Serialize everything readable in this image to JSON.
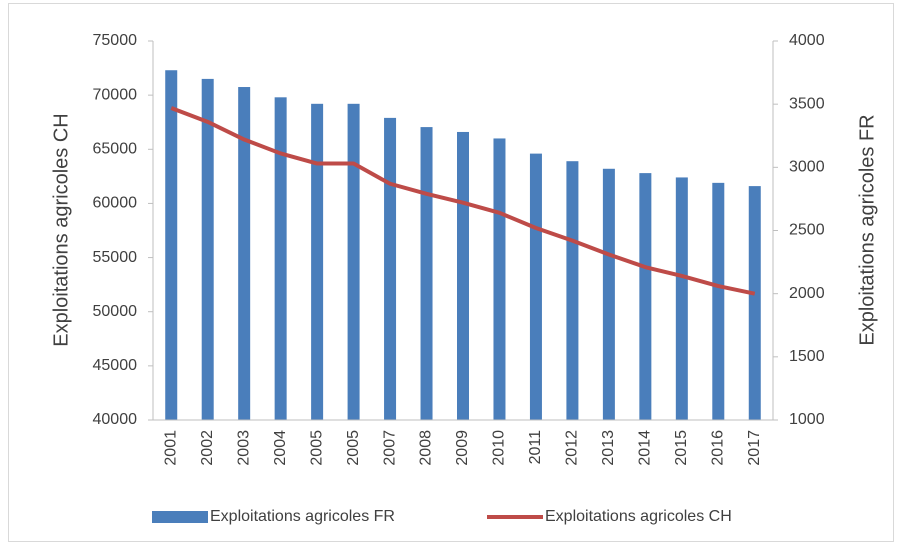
{
  "chart_data": {
    "type": "bar_line",
    "y_label": "Exploitations agricoles  CH",
    "y2_label": "Exploitations agricoles  FR",
    "categories": [
      "2001",
      "2002",
      "2003",
      "2004",
      "2005",
      "2005",
      "2007",
      "2008",
      "2009",
      "2010",
      "2011",
      "2012",
      "2013",
      "2014",
      "2015",
      "2016",
      "2017"
    ],
    "series": [
      {
        "name": "Exploitations agricoles  FR",
        "type": "bar",
        "color": "#4a7ebb",
        "axis": "y",
        "values": [
          72300,
          71500,
          70750,
          69800,
          69200,
          69200,
          67900,
          67050,
          66600,
          66000,
          64600,
          63900,
          63200,
          62800,
          62400,
          61900,
          61600
        ]
      },
      {
        "name": "Exploitations agricoles  CH",
        "type": "line",
        "color": "#be4b48",
        "axis": "y2",
        "values": [
          3470,
          3360,
          3220,
          3110,
          3030,
          3030,
          2870,
          2790,
          2720,
          2640,
          2520,
          2420,
          2310,
          2210,
          2140,
          2060,
          2000
        ]
      }
    ],
    "ylim": [
      40000,
      75000
    ],
    "yticks": [
      40000,
      45000,
      50000,
      55000,
      60000,
      65000,
      70000,
      75000
    ],
    "y2lim": [
      1000,
      4000
    ],
    "y2ticks": [
      1000,
      1500,
      2000,
      2500,
      3000,
      3500,
      4000
    ],
    "legend": "bottom"
  }
}
